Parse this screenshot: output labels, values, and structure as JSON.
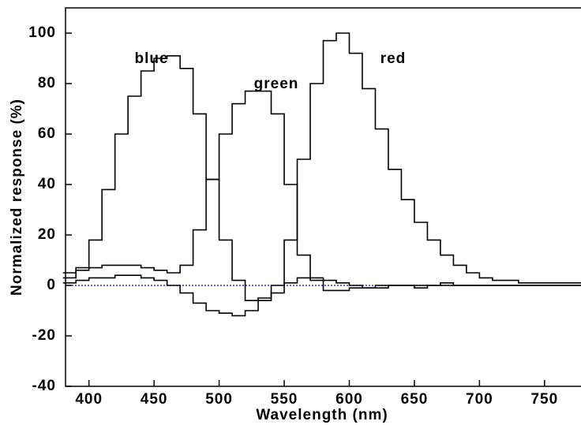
{
  "chart_data": {
    "type": "step-line",
    "xlabel": "Wavelength (nm)",
    "ylabel": "Normalized response (%)",
    "x": [
      385,
      395,
      405,
      415,
      425,
      435,
      445,
      455,
      465,
      475,
      485,
      495,
      505,
      515,
      525,
      535,
      545,
      555,
      565,
      575,
      585,
      595,
      605,
      615,
      625,
      635,
      645,
      655,
      665,
      675,
      685,
      695,
      705,
      715,
      725,
      735,
      745,
      755,
      765,
      775
    ],
    "series": [
      {
        "name": "blue",
        "color": "#000000",
        "values": [
          3,
          6,
          18,
          38,
          60,
          75,
          85,
          90,
          91,
          86,
          68,
          42,
          18,
          2,
          -6,
          -5,
          -3,
          1,
          3,
          3,
          2,
          1,
          0,
          -1,
          -1,
          0,
          0,
          0,
          0,
          1,
          0,
          0,
          0,
          0,
          0,
          0,
          0,
          0,
          0,
          0
        ]
      },
      {
        "name": "green",
        "color": "#000000",
        "values": [
          5,
          7,
          7,
          8,
          8,
          8,
          7,
          6,
          5,
          8,
          22,
          42,
          60,
          72,
          77,
          77,
          68,
          40,
          12,
          2,
          -2,
          -2,
          -1,
          -1,
          0,
          0,
          0,
          -1,
          0,
          0,
          0,
          0,
          0,
          0,
          0,
          0,
          0,
          0,
          0,
          0
        ]
      },
      {
        "name": "red",
        "color": "#000000",
        "values": [
          1,
          2,
          3,
          3,
          4,
          4,
          3,
          2,
          0,
          -3,
          -7,
          -10,
          -11,
          -12,
          -10,
          -6,
          0,
          18,
          50,
          80,
          97,
          100,
          92,
          78,
          62,
          46,
          34,
          25,
          18,
          12,
          8,
          5,
          3,
          2,
          2,
          1,
          1,
          1,
          1,
          1
        ]
      }
    ],
    "xlim": [
      382,
      778
    ],
    "ylim": [
      -40,
      110
    ],
    "xticks": [
      400,
      450,
      500,
      550,
      600,
      650,
      700,
      750
    ],
    "yticks": [
      -40,
      -20,
      0,
      20,
      40,
      60,
      80,
      100
    ],
    "zero_line_color": "#0000cc"
  }
}
